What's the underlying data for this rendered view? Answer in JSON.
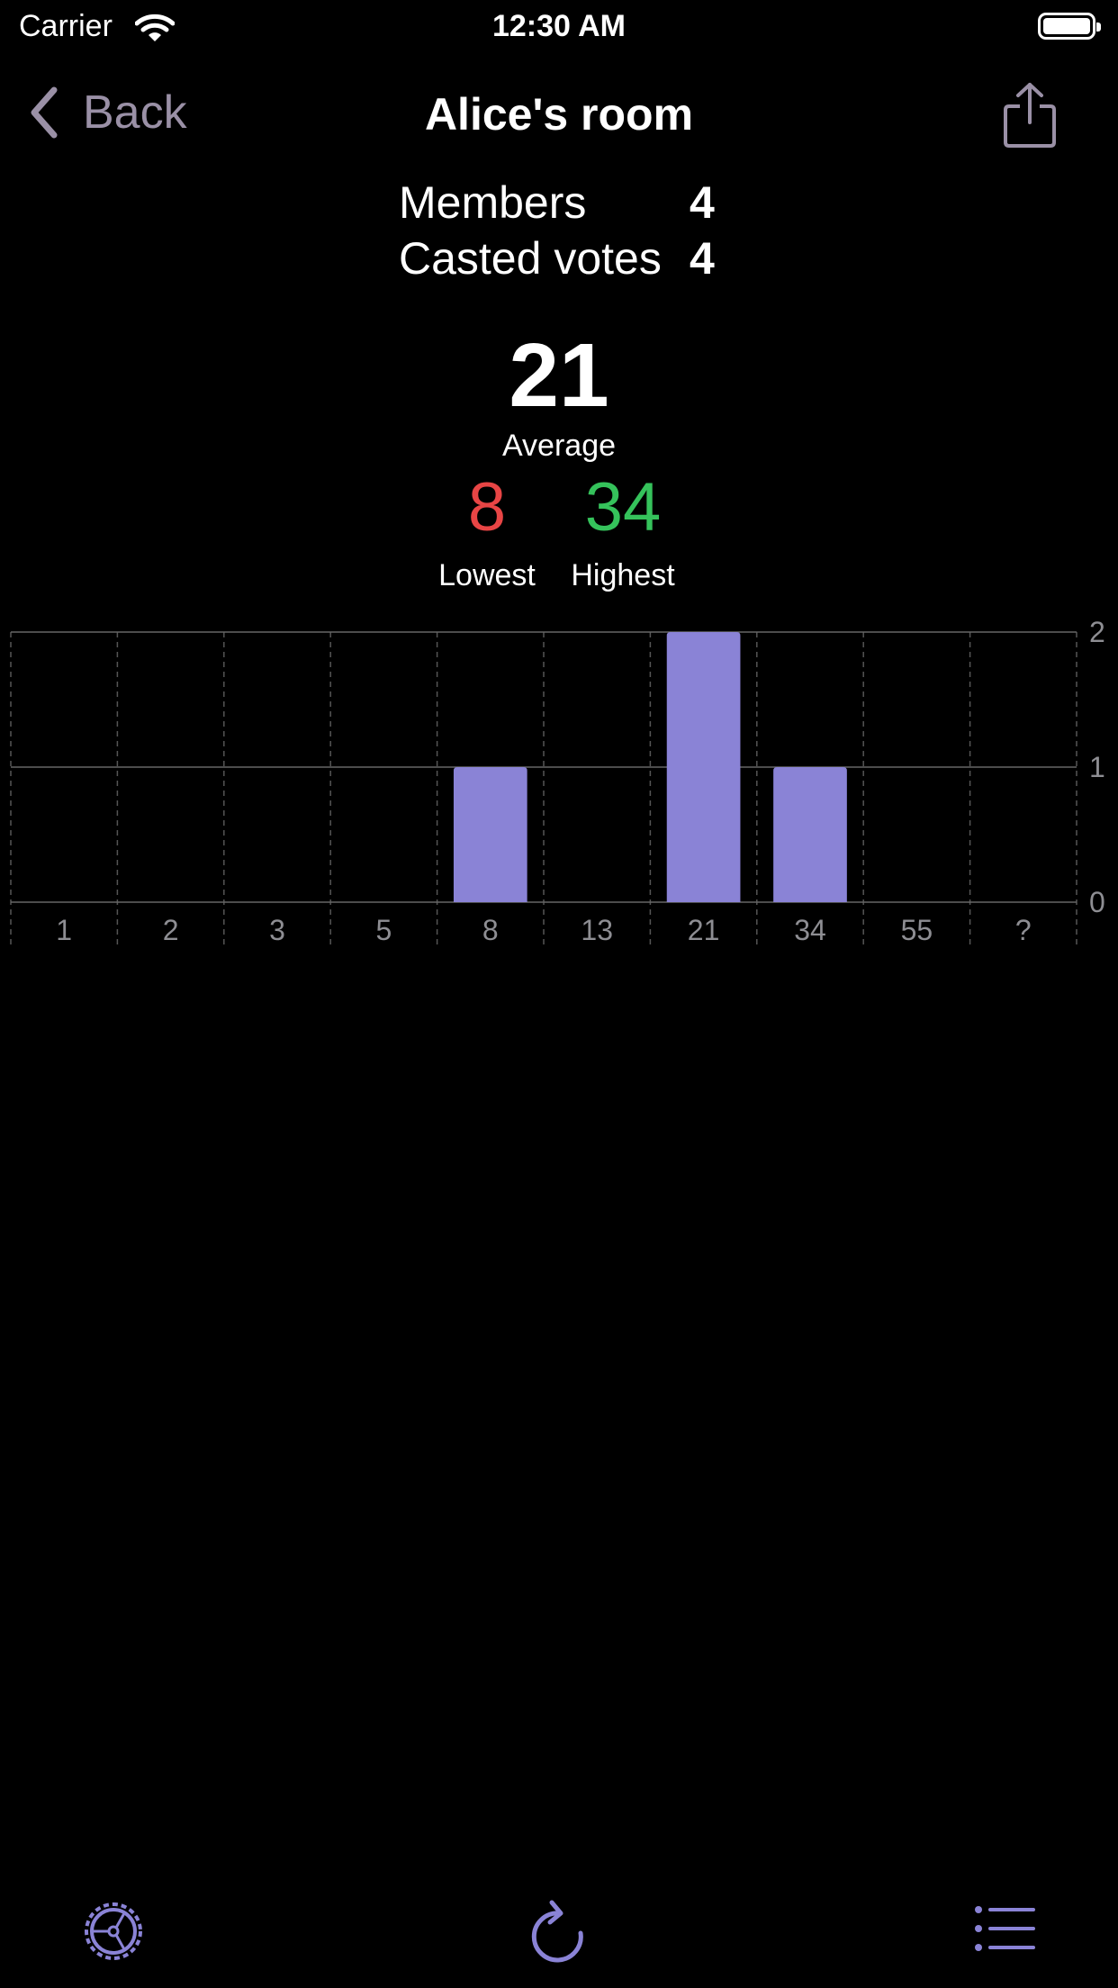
{
  "status_bar": {
    "carrier": "Carrier",
    "time": "12:30 AM"
  },
  "nav": {
    "back_label": "Back",
    "title": "Alice's room"
  },
  "stats": {
    "members_label": "Members",
    "members_value": "4",
    "votes_label": "Casted votes",
    "votes_value": "4",
    "average_value": "21",
    "average_label": "Average",
    "lowest_value": "8",
    "lowest_label": "Lowest",
    "highest_value": "34",
    "highest_label": "Highest"
  },
  "colors": {
    "accent": "#8a83d6",
    "back": "#9a90a6",
    "lowest": "#e84545",
    "highest": "#35c25b"
  },
  "chart_data": {
    "type": "bar",
    "categories": [
      "1",
      "2",
      "3",
      "5",
      "8",
      "13",
      "21",
      "34",
      "55",
      "?"
    ],
    "values": [
      0,
      0,
      0,
      0,
      1,
      0,
      2,
      1,
      0,
      0
    ],
    "ylim": [
      0,
      2
    ],
    "yticks": [
      "0",
      "1",
      "2"
    ],
    "grid": true,
    "y_axis_side": "right"
  },
  "tabbar": {
    "icons": [
      "settings-icon",
      "refresh-icon",
      "list-icon"
    ]
  }
}
